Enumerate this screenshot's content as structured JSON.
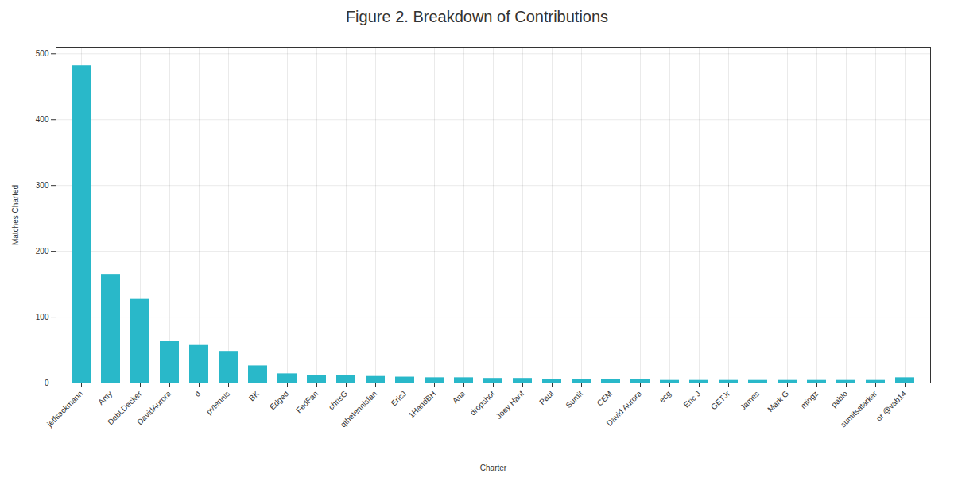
{
  "chart_data": {
    "type": "bar",
    "title": "Figure 2. Breakdown of Contributions",
    "xlabel": "Charter",
    "ylabel": "Matches Charted",
    "categories": [
      "jeffsackmann",
      "Amy",
      "DebLDecker",
      "DavidAurora",
      "d",
      "pvtennis",
      "BK",
      "Edged",
      "FedFan",
      "chrisG",
      "qthetennisfan",
      "EricJ",
      "1HandBH",
      "Ana",
      "dropshot",
      "Joey Hanf",
      "Paul",
      "Sumit",
      "CEM",
      "David Aurora",
      "ecg",
      "Eric J",
      "GETJr",
      "James",
      "Mark G",
      "mingz",
      "pablo",
      "sumitsatarkar",
      "or @vab14"
    ],
    "values": [
      482,
      165,
      127,
      63,
      57,
      48,
      26,
      14,
      12,
      11,
      10,
      9,
      8,
      8,
      7,
      7,
      6,
      6,
      5,
      5,
      4,
      4,
      4,
      4,
      4,
      4,
      4,
      4,
      8
    ],
    "color": "#29b8c9",
    "ylim": [
      0,
      510
    ],
    "yticks": [
      0,
      100,
      200,
      300,
      400,
      500
    ],
    "grid": true
  }
}
